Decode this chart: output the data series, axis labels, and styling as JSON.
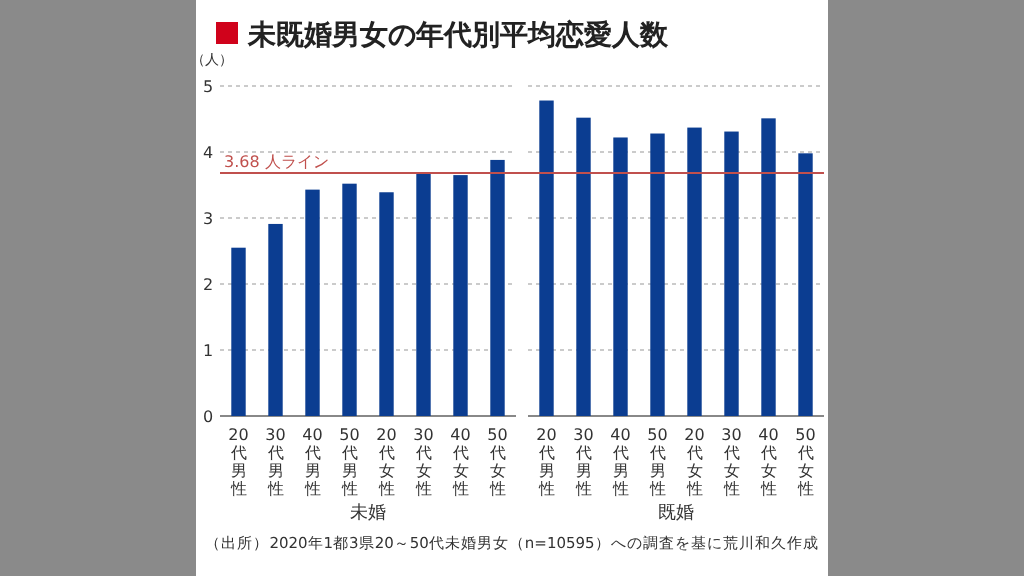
{
  "chart_data": [
    {
      "type": "bar",
      "title": "未既婚男女の年代別平均恋愛人数",
      "ylabel": "（人）",
      "xlabel": "未婚",
      "categories": [
        "20代男性",
        "30代男性",
        "40代男性",
        "50代男性",
        "20代女性",
        "30代女性",
        "40代女性",
        "50代女性"
      ],
      "series": [
        {
          "color": "#0b3d91",
          "values": [
            2.55,
            2.91,
            3.43,
            3.52,
            3.39,
            3.68,
            3.65,
            3.88
          ]
        }
      ],
      "ylim": [
        0,
        5
      ],
      "yticks": [
        0,
        1,
        2,
        3,
        4,
        5
      ],
      "grid": "y",
      "ref_lines": [
        {
          "axis": "y",
          "value": 3.68,
          "label": "3.68 人ライン",
          "color": "#c0504d"
        }
      ],
      "annotations": [
        "（出所）2020年1都3県20～50代未婚男女（n=10595）への調査を基に荒川和久作成"
      ]
    },
    {
      "type": "bar",
      "xlabel": "既婚",
      "categories": [
        "20代男性",
        "30代男性",
        "40代男性",
        "50代男性",
        "20代女性",
        "30代女性",
        "40代女性",
        "50代女性"
      ],
      "series": [
        {
          "color": "#0b3d91",
          "values": [
            4.78,
            4.52,
            4.22,
            4.28,
            4.37,
            4.31,
            4.51,
            3.98
          ]
        }
      ],
      "ylim": [
        0,
        5
      ],
      "yticks": [
        0,
        1,
        2,
        3,
        4,
        5
      ],
      "grid": "y",
      "tick_labels": "x",
      "ref_lines": [
        {
          "axis": "y",
          "value": 3.68,
          "label": null,
          "color": "#c0504d"
        }
      ]
    }
  ]
}
